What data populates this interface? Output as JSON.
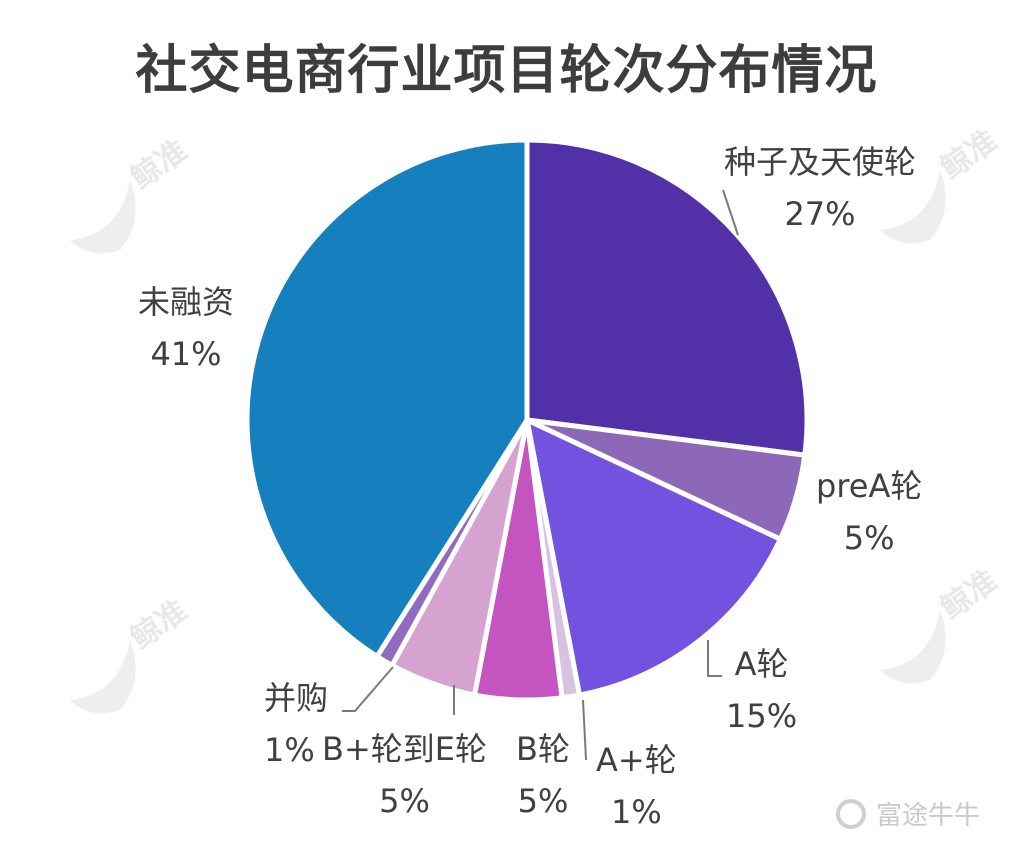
{
  "title": "社交电商行业项目轮次分布情况",
  "chart_data": {
    "type": "pie",
    "title": "社交电商行业项目轮次分布情况",
    "start_angle": "12 o'clock",
    "direction": "clockwise",
    "categories": [
      "种子及天使轮",
      "preA轮",
      "A轮",
      "A+轮",
      "B轮",
      "B+轮到E轮",
      "并购",
      "未融资"
    ],
    "values": [
      27,
      5,
      15,
      1,
      5,
      5,
      1,
      41
    ],
    "labels": [
      "27%",
      "5%",
      "15%",
      "1%",
      "5%",
      "5%",
      "1%",
      "41%"
    ],
    "colors": [
      "#5230a8",
      "#8e68b8",
      "#7352e0",
      "#d7c3e0",
      "#c454c0",
      "#d6a2d0",
      "#8f6cc0",
      "#1680bf"
    ],
    "unit": "%",
    "legend": "none (data labels with leader lines)"
  },
  "slices": [
    {
      "name": "种子及天使轮",
      "pct": "27%"
    },
    {
      "name": "preA轮",
      "pct": "5%"
    },
    {
      "name": "A轮",
      "pct": "15%"
    },
    {
      "name": "A+轮",
      "pct": "1%"
    },
    {
      "name": "B轮",
      "pct": "5%"
    },
    {
      "name": "B+轮到E轮",
      "pct": "5%"
    },
    {
      "name": "并购",
      "pct": "1%"
    },
    {
      "name": "未融资",
      "pct": "41%"
    }
  ],
  "watermark": "鲸准",
  "footer": {
    "brand": "富途牛牛"
  }
}
